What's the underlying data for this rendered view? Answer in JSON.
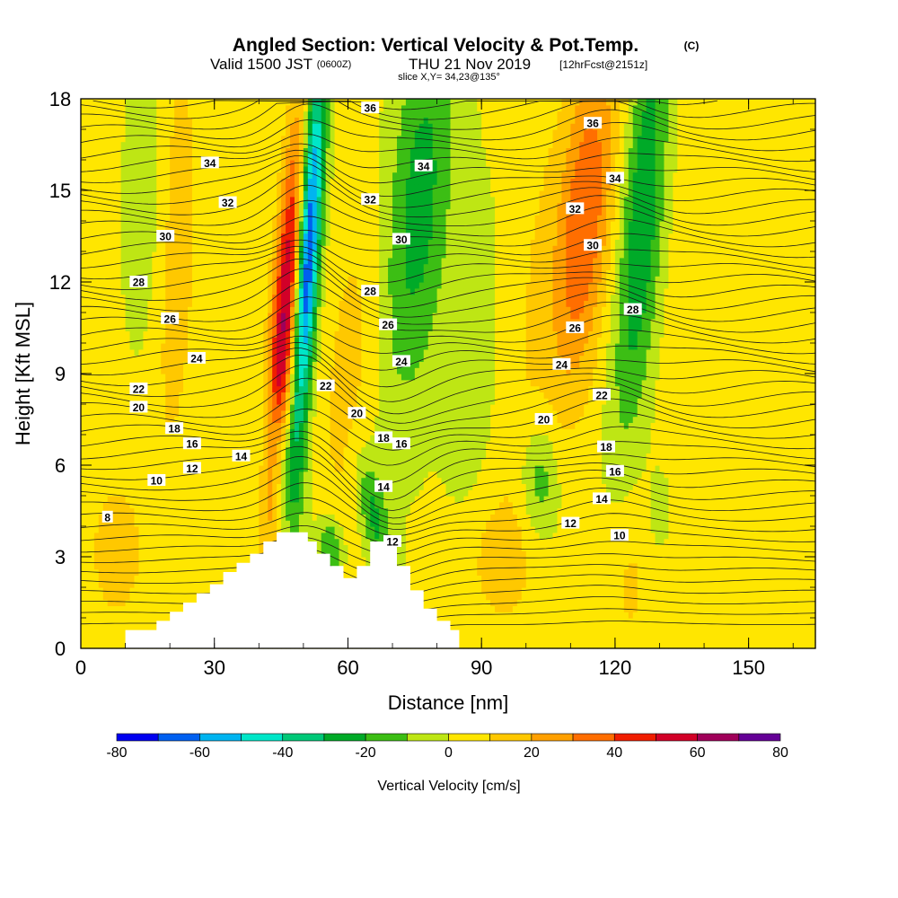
{
  "title": {
    "main": "Angled Section: Vertical Velocity & Pot.Temp.",
    "main_suffix": "(C)",
    "valid_prefix": "Valid 1500 JST",
    "valid_zulu": "(0600Z)",
    "valid_date": "THU 21 Nov 2019",
    "forecast": "[12hrFcst@2151z]",
    "slice": "slice X,Y= 34,23@135°"
  },
  "chart_data": {
    "type": "heatmap",
    "title": "Angled Section: Vertical Velocity & Pot.Temp.",
    "xlabel": "Distance [nm]",
    "ylabel": "Height [Kft MSL]",
    "xlim": [
      0,
      165
    ],
    "ylim": [
      0,
      18
    ],
    "x_ticks": [
      0,
      30,
      60,
      90,
      120,
      150
    ],
    "y_ticks": [
      0,
      3,
      6,
      9,
      12,
      15,
      18
    ],
    "colorbar": {
      "label": "Vertical Velocity [cm/s]",
      "range": [
        -80,
        80
      ],
      "tick_labels": [
        -80,
        -60,
        -40,
        -20,
        0,
        20,
        40,
        60,
        80
      ],
      "bounds": [
        -80,
        -70,
        -60,
        -50,
        -40,
        -30,
        -20,
        -10,
        0,
        10,
        20,
        30,
        40,
        50,
        60,
        70,
        80
      ],
      "colors": [
        "#0000f0",
        "#0060f0",
        "#00b4f0",
        "#00e6c8",
        "#00c878",
        "#00aa28",
        "#3cbe14",
        "#bee614",
        "#ffe600",
        "#ffc800",
        "#ffa000",
        "#ff6e00",
        "#f01e00",
        "#d20028",
        "#a0005a",
        "#640096"
      ]
    },
    "background_value": 2,
    "velocity_features": [
      {
        "x": 46,
        "y": 11,
        "sx": 2.2,
        "sy": 4.5,
        "lean": 0.5,
        "value": 62
      },
      {
        "x": 51,
        "y": 13,
        "sx": 1.8,
        "sy": 4.5,
        "lean": 0.4,
        "value": -78
      },
      {
        "x": 76,
        "y": 14.5,
        "sx": 5,
        "sy": 4.5,
        "lean": 0.5,
        "value": -27
      },
      {
        "x": 113,
        "y": 14,
        "sx": 4.5,
        "sy": 4,
        "lean": 0.6,
        "value": 38
      },
      {
        "x": 126,
        "y": 14,
        "sx": 3.5,
        "sy": 5,
        "lean": 0.5,
        "value": -32
      },
      {
        "x": 21,
        "y": 13,
        "sx": 3.5,
        "sy": 5,
        "lean": 0.2,
        "value": 17
      },
      {
        "x": 16,
        "y": 14,
        "sx": 4,
        "sy": 3.5,
        "lean": 0,
        "value": -10
      },
      {
        "x": 100,
        "y": 10,
        "sx": 4,
        "sy": 7,
        "lean": 0.4,
        "value": 7
      },
      {
        "x": 88,
        "y": 9,
        "sx": 4,
        "sy": 4,
        "lean": 0.3,
        "value": -8
      },
      {
        "x": 140,
        "y": 12,
        "sx": 6,
        "sy": 6,
        "lean": 0.3,
        "value": 8
      },
      {
        "x": 45,
        "y": 6.3,
        "sx": 3,
        "sy": 1.5,
        "lean": -1.2,
        "value": -18
      },
      {
        "x": 66,
        "y": 4.3,
        "sx": 2.2,
        "sy": 1.4,
        "lean": -1.2,
        "value": -24
      },
      {
        "x": 56,
        "y": 3.2,
        "sx": 2,
        "sy": 0.8,
        "lean": 0,
        "value": -26
      },
      {
        "x": 103,
        "y": 5.5,
        "sx": 3,
        "sy": 1.3,
        "lean": 0,
        "value": -20
      },
      {
        "x": 130,
        "y": 4.6,
        "sx": 1.5,
        "sy": 0.8,
        "lean": 0,
        "value": -15
      },
      {
        "x": 8,
        "y": 3.2,
        "sx": 4,
        "sy": 1.6,
        "lean": 0,
        "value": 16
      },
      {
        "x": 93,
        "y": 3,
        "sx": 6,
        "sy": 1.6,
        "lean": 0,
        "value": 11
      },
      {
        "x": 123,
        "y": 2.2,
        "sx": 4,
        "sy": 2,
        "lean": 0,
        "value": 10
      },
      {
        "x": 60,
        "y": 9,
        "sx": 4,
        "sy": 4,
        "lean": 0.5,
        "value": 12
      }
    ],
    "terrain": [
      [
        10,
        0
      ],
      [
        10,
        0.6
      ],
      [
        17,
        0.6
      ],
      [
        17,
        0.9
      ],
      [
        20,
        0.9
      ],
      [
        20,
        1.2
      ],
      [
        23,
        1.2
      ],
      [
        23,
        1.5
      ],
      [
        26,
        1.5
      ],
      [
        26,
        1.8
      ],
      [
        29,
        1.8
      ],
      [
        29,
        2.1
      ],
      [
        32,
        2.1
      ],
      [
        32,
        2.5
      ],
      [
        35,
        2.5
      ],
      [
        35,
        2.8
      ],
      [
        38,
        2.8
      ],
      [
        38,
        3.1
      ],
      [
        41,
        3.1
      ],
      [
        41,
        3.5
      ],
      [
        44,
        3.5
      ],
      [
        44,
        3.8
      ],
      [
        47,
        3.8
      ],
      [
        51,
        3.8
      ],
      [
        51,
        3.5
      ],
      [
        53,
        3.5
      ],
      [
        53,
        3.1
      ],
      [
        56,
        3.1
      ],
      [
        56,
        2.7
      ],
      [
        59,
        2.7
      ],
      [
        59,
        2.3
      ],
      [
        62,
        2.3
      ],
      [
        62,
        2.7
      ],
      [
        65,
        2.7
      ],
      [
        65,
        3.5
      ],
      [
        71,
        3.5
      ],
      [
        71,
        2.7
      ],
      [
        74,
        2.7
      ],
      [
        74,
        1.9
      ],
      [
        77,
        1.9
      ],
      [
        77,
        1.3
      ],
      [
        80,
        1.3
      ],
      [
        80,
        0.9
      ],
      [
        83,
        0.9
      ],
      [
        83,
        0.6
      ],
      [
        85,
        0.6
      ],
      [
        85,
        0
      ]
    ],
    "isentrope_labels": [
      {
        "x": 65,
        "y": 17.7,
        "text": "36"
      },
      {
        "x": 115,
        "y": 17.2,
        "text": "36"
      },
      {
        "x": 29,
        "y": 15.9,
        "text": "34"
      },
      {
        "x": 77,
        "y": 15.8,
        "text": "34"
      },
      {
        "x": 120,
        "y": 15.4,
        "text": "34"
      },
      {
        "x": 33,
        "y": 14.6,
        "text": "32"
      },
      {
        "x": 65,
        "y": 14.7,
        "text": "32"
      },
      {
        "x": 111,
        "y": 14.4,
        "text": "32"
      },
      {
        "x": 19,
        "y": 13.5,
        "text": "30"
      },
      {
        "x": 72,
        "y": 13.4,
        "text": "30"
      },
      {
        "x": 115,
        "y": 13.2,
        "text": "30"
      },
      {
        "x": 13,
        "y": 12,
        "text": "28"
      },
      {
        "x": 65,
        "y": 11.7,
        "text": "28"
      },
      {
        "x": 124,
        "y": 11.1,
        "text": "28"
      },
      {
        "x": 20,
        "y": 10.8,
        "text": "26"
      },
      {
        "x": 69,
        "y": 10.6,
        "text": "26"
      },
      {
        "x": 111,
        "y": 10.5,
        "text": "26"
      },
      {
        "x": 26,
        "y": 9.5,
        "text": "24"
      },
      {
        "x": 72,
        "y": 9.4,
        "text": "24"
      },
      {
        "x": 108,
        "y": 9.3,
        "text": "24"
      },
      {
        "x": 13,
        "y": 8.5,
        "text": "22"
      },
      {
        "x": 55,
        "y": 8.6,
        "text": "22"
      },
      {
        "x": 117,
        "y": 8.3,
        "text": "22"
      },
      {
        "x": 13,
        "y": 7.9,
        "text": "20"
      },
      {
        "x": 62,
        "y": 7.7,
        "text": "20"
      },
      {
        "x": 104,
        "y": 7.5,
        "text": "20"
      },
      {
        "x": 21,
        "y": 7.2,
        "text": "18"
      },
      {
        "x": 68,
        "y": 6.9,
        "text": "18"
      },
      {
        "x": 118,
        "y": 6.6,
        "text": "18"
      },
      {
        "x": 25,
        "y": 6.7,
        "text": "16"
      },
      {
        "x": 72,
        "y": 6.7,
        "text": "16"
      },
      {
        "x": 120,
        "y": 5.8,
        "text": "16"
      },
      {
        "x": 36,
        "y": 6.3,
        "text": "14"
      },
      {
        "x": 68,
        "y": 5.3,
        "text": "14"
      },
      {
        "x": 117,
        "y": 4.9,
        "text": "14"
      },
      {
        "x": 25,
        "y": 5.9,
        "text": "12"
      },
      {
        "x": 70,
        "y": 3.5,
        "text": "12"
      },
      {
        "x": 110,
        "y": 4.1,
        "text": "12"
      },
      {
        "x": 17,
        "y": 5.5,
        "text": "10"
      },
      {
        "x": 121,
        "y": 3.7,
        "text": "10"
      },
      {
        "x": 6,
        "y": 4.3,
        "text": "8"
      }
    ]
  }
}
